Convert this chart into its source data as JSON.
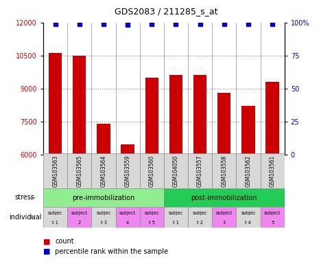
{
  "title": "GDS2083 / 211285_s_at",
  "samples": [
    "GSM103563",
    "GSM103565",
    "GSM103564",
    "GSM103559",
    "GSM103560",
    "GSM104050",
    "GSM103557",
    "GSM103558",
    "GSM103562",
    "GSM103561"
  ],
  "counts": [
    10600,
    10500,
    7400,
    6450,
    9500,
    9600,
    9600,
    8800,
    8200,
    9300
  ],
  "percentile_ranks": [
    99,
    99,
    99,
    98,
    99,
    99,
    99,
    99,
    99,
    99
  ],
  "ylim_left": [
    6000,
    12000
  ],
  "ylim_right": [
    0,
    100
  ],
  "yticks_left": [
    6000,
    7500,
    9000,
    10500,
    12000
  ],
  "yticks_right": [
    0,
    25,
    50,
    75,
    100
  ],
  "bar_color": "#cc0000",
  "scatter_color": "#0000cc",
  "bar_width": 0.55,
  "stress_groups": [
    {
      "label": "pre-immobilization",
      "start": 0,
      "end": 5,
      "color": "#90ee90"
    },
    {
      "label": "post-immobilization",
      "start": 5,
      "end": 10,
      "color": "#22cc55"
    }
  ],
  "individuals": [
    {
      "line1": "subjec",
      "line2": "t 1",
      "idx": 0,
      "color": "#d8d8d8"
    },
    {
      "line1": "subject",
      "line2": "2",
      "idx": 1,
      "color": "#ee88ee"
    },
    {
      "line1": "subjec",
      "line2": "t 3",
      "idx": 2,
      "color": "#d8d8d8"
    },
    {
      "line1": "subject",
      "line2": "4",
      "idx": 3,
      "color": "#ee88ee"
    },
    {
      "line1": "subjec",
      "line2": "t 5",
      "idx": 4,
      "color": "#ee88ee"
    },
    {
      "line1": "subjec",
      "line2": "t 1",
      "idx": 5,
      "color": "#d8d8d8"
    },
    {
      "line1": "subjec",
      "line2": "t 2",
      "idx": 6,
      "color": "#d8d8d8"
    },
    {
      "line1": "subject",
      "line2": "3",
      "idx": 7,
      "color": "#ee88ee"
    },
    {
      "line1": "subjec",
      "line2": "t 4",
      "idx": 8,
      "color": "#d8d8d8"
    },
    {
      "line1": "subject",
      "line2": "5",
      "idx": 9,
      "color": "#ee88ee"
    }
  ],
  "bar_bottom": 6000,
  "grid_color": "#888888",
  "tick_color_left": "#cc0000",
  "tick_color_right": "#0000cc",
  "sample_bg_color": "#d8d8d8",
  "sample_border_color": "#888888"
}
